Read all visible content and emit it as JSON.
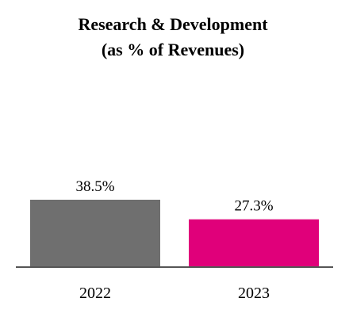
{
  "chart_data": {
    "type": "bar",
    "title_line1": "Research & Development",
    "title_line2": "(as % of Revenues)",
    "categories": [
      "2022",
      "2023"
    ],
    "values": [
      38.5,
      27.3
    ],
    "data_labels": [
      "38.5%",
      "27.3%"
    ],
    "colors": [
      "#6f6f6f",
      "#e0007a"
    ],
    "axis_color": "#555555",
    "ylim": [
      0,
      100
    ],
    "grid": false,
    "legend": "none"
  }
}
